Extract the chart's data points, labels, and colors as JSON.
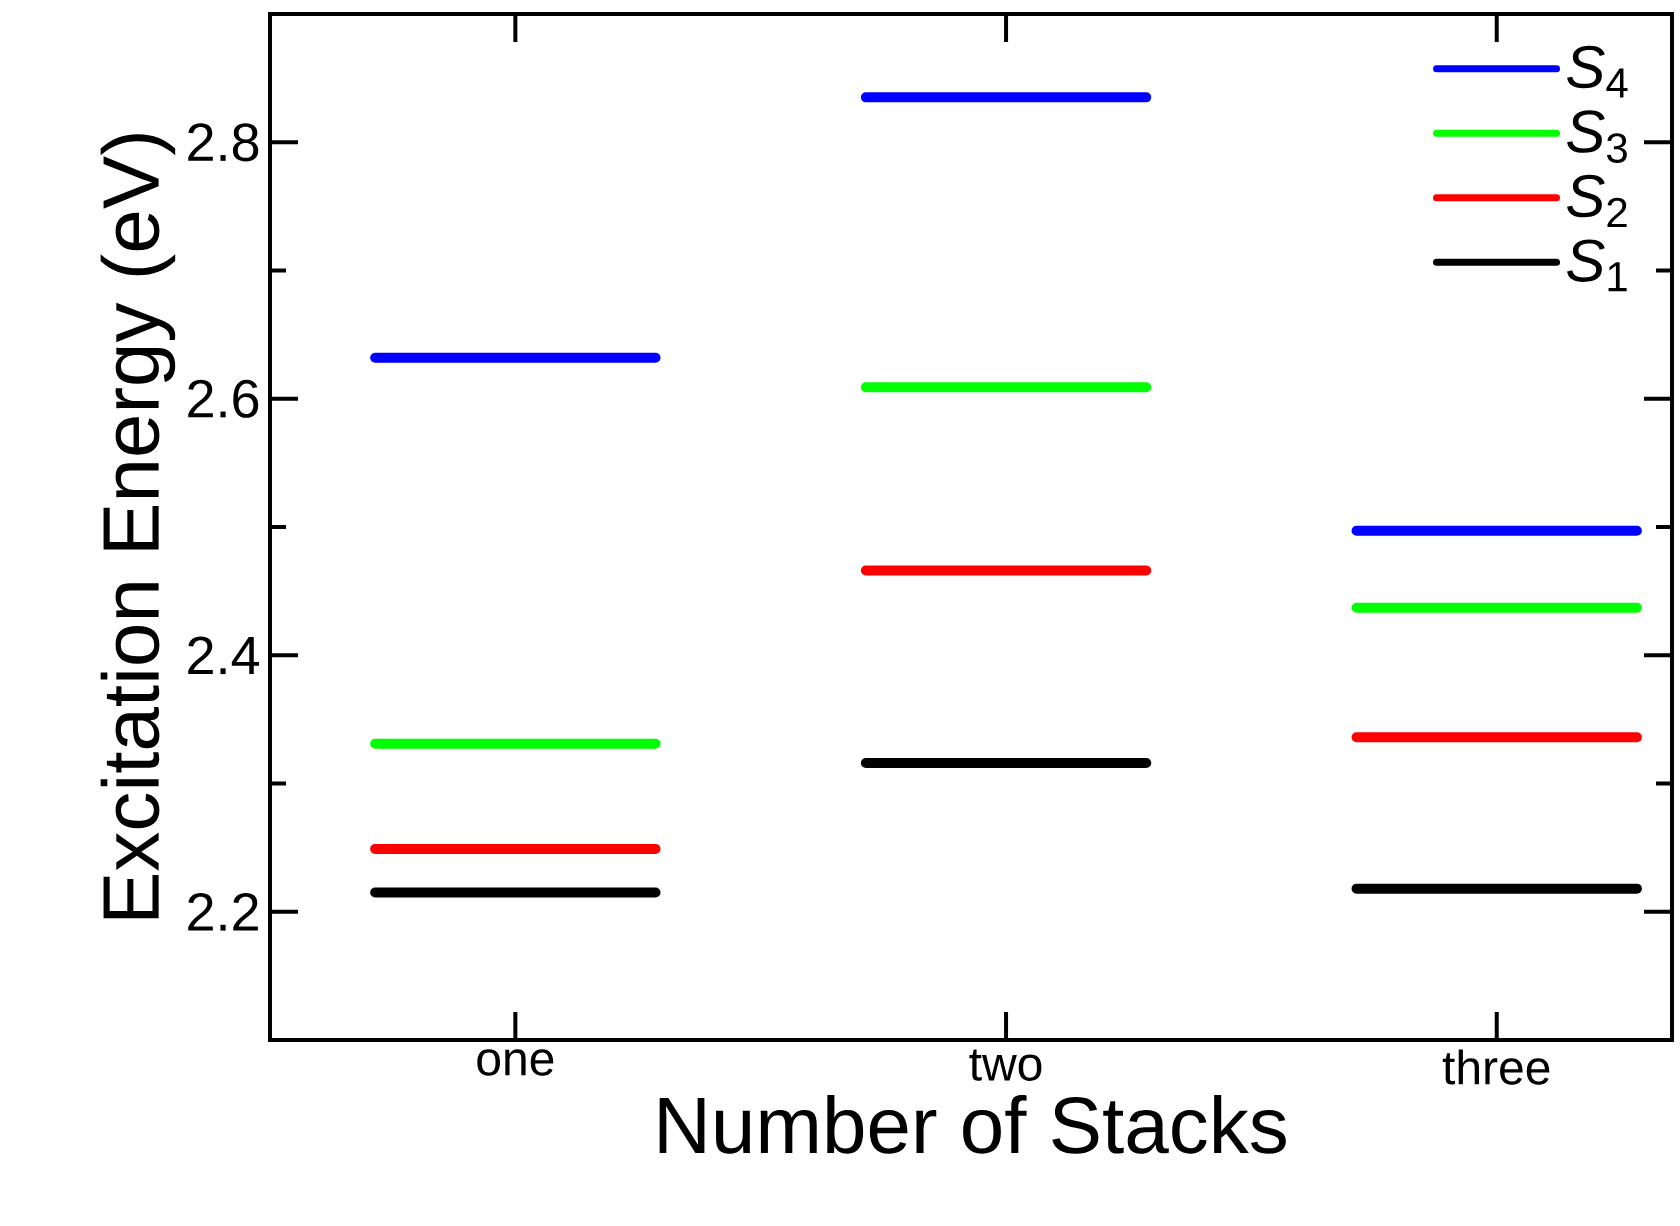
{
  "chart_data": {
    "type": "line",
    "xlabel": "Number of Stacks",
    "ylabel": "Excitation Energy (eV)",
    "categories": [
      null,
      null,
      "one",
      null,
      null,
      null,
      null,
      null,
      null,
      "two",
      null,
      null,
      null,
      null,
      null,
      null,
      "three",
      null,
      null
    ],
    "ylim": [
      2.1,
      2.9
    ],
    "yticks": [
      2.2,
      2.4,
      2.6,
      2.8
    ],
    "legend": "top right",
    "line_style": "solid",
    "series": [
      {
        "name": "*S*$_{4}$",
        "color": "#0000ff",
        "values": [
          2.632,
          2.632,
          2.632,
          2.632,
          2.632,
          null,
          null,
          2.835,
          2.835,
          2.835,
          2.835,
          2.835,
          null,
          null,
          2.497,
          2.497,
          2.497,
          2.497,
          2.497
        ]
      },
      {
        "name": "*S*$_{3}$",
        "color": "#00ff00",
        "values": [
          2.331,
          2.331,
          2.331,
          2.331,
          2.331,
          null,
          null,
          2.609,
          2.609,
          2.609,
          2.609,
          2.609,
          null,
          null,
          2.437,
          2.437,
          2.437,
          2.437,
          2.437
        ]
      },
      {
        "name": "*S*$_{2}$",
        "color": "#ff0000",
        "values": [
          2.249,
          2.249,
          2.249,
          2.249,
          2.249,
          null,
          null,
          2.466,
          2.466,
          2.466,
          2.466,
          2.466,
          null,
          null,
          2.336,
          2.336,
          2.336,
          2.336,
          2.336
        ]
      },
      {
        "name": "*S*$_{1}$",
        "color": "#000000",
        "values": [
          2.215,
          2.215,
          2.215,
          2.215,
          2.215,
          null,
          null,
          2.316,
          2.316,
          2.316,
          2.316,
          2.316,
          null,
          null,
          2.218,
          2.218,
          2.218,
          2.218,
          2.218
        ]
      }
    ]
  }
}
